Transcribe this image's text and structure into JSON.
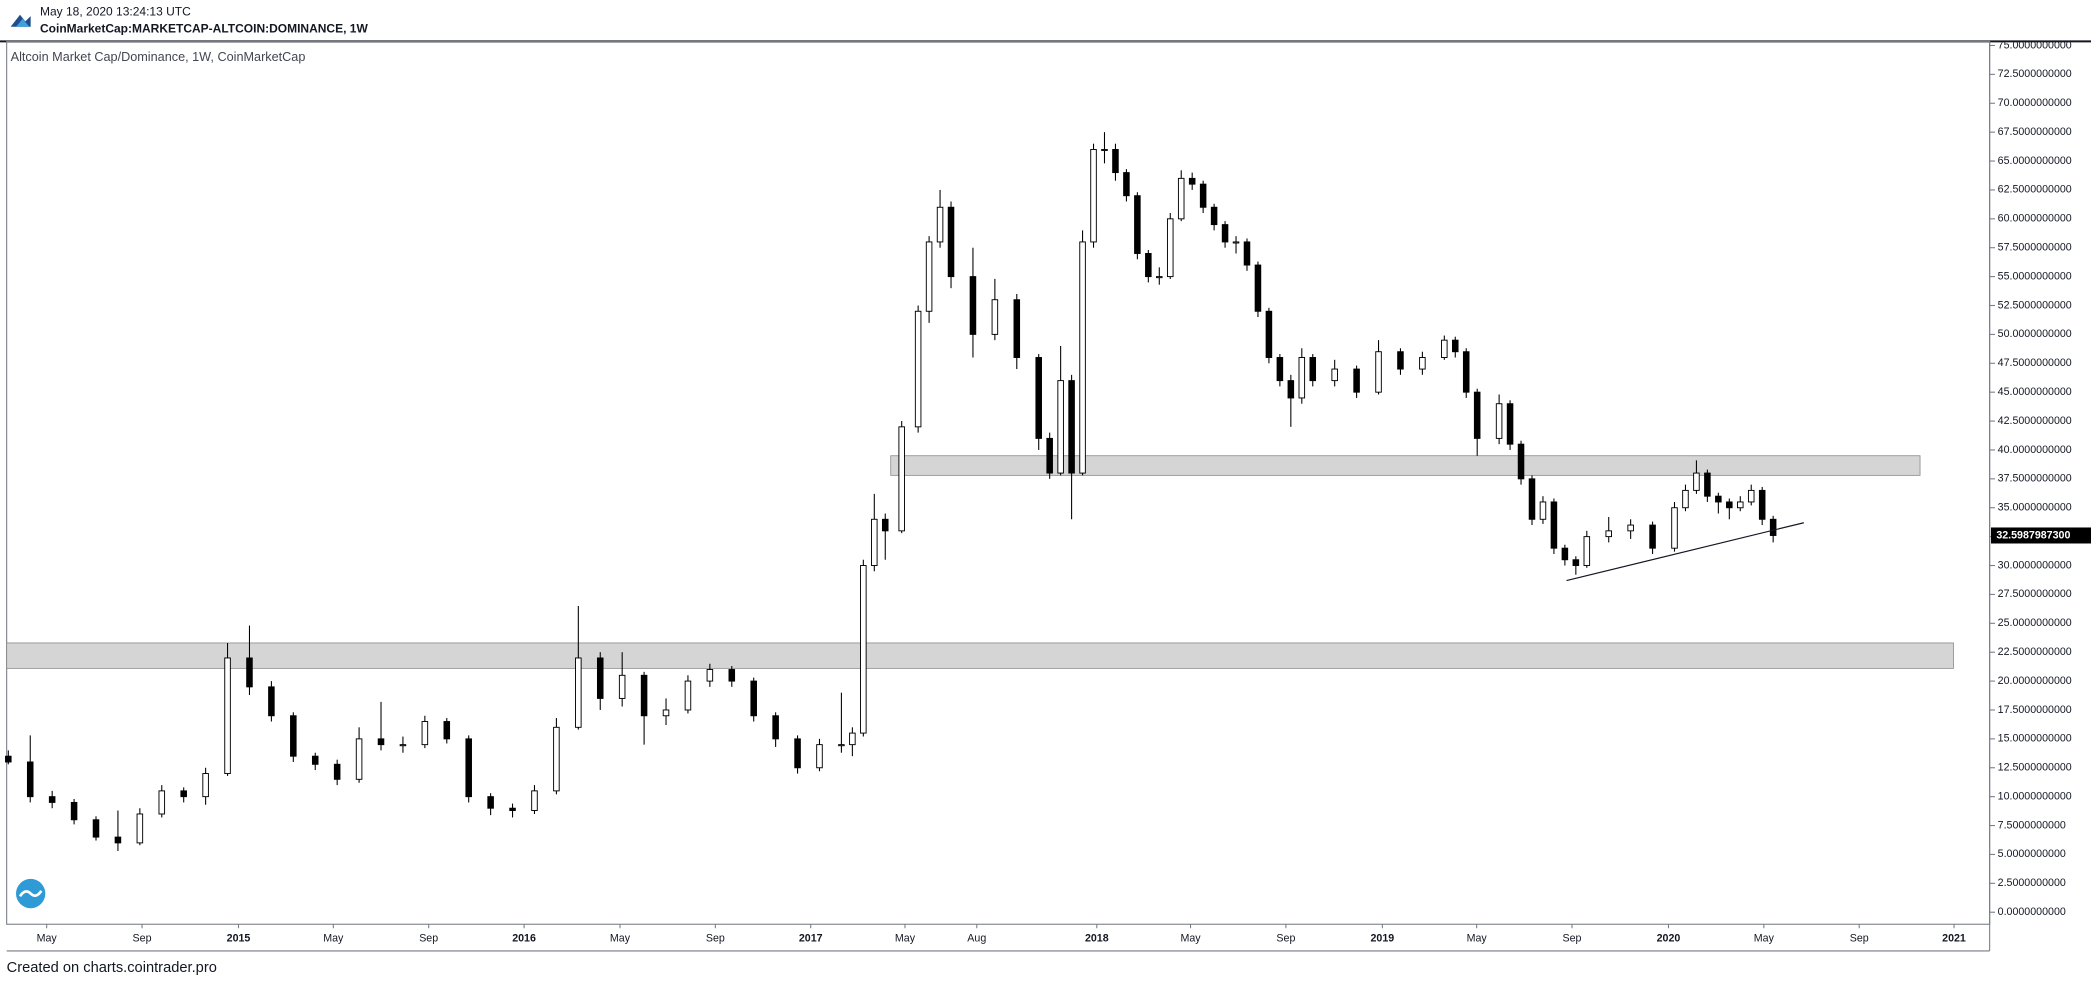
{
  "header": {
    "timestamp": "May 18, 2020 13:24:13 UTC",
    "symbol": "CoinMarketCap:MARKETCAP-ALTCOIN:DOMINANCE, 1W"
  },
  "footer": "Created on charts.cointrader.pro",
  "chart_data": {
    "type": "candlestick",
    "title": "Altcoin Market Cap/Dominance, 1W, CoinMarketCap",
    "up_color": "#ffffff",
    "down_color": "#000000",
    "wick_color": "#000000",
    "xlim": [
      -42.3,
      319.5
    ],
    "ylim": [
      -1.04,
      75.35
    ],
    "xticks": [
      {
        "value": -35,
        "label": "May"
      },
      {
        "value": -17.6,
        "label": "Sep"
      },
      {
        "value": 0,
        "label": "2015"
      },
      {
        "value": 17.3,
        "label": "May"
      },
      {
        "value": 34.7,
        "label": "Sep"
      },
      {
        "value": 52.1,
        "label": "2016"
      },
      {
        "value": 69.6,
        "label": "May"
      },
      {
        "value": 87,
        "label": "Sep"
      },
      {
        "value": 104.4,
        "label": "2017"
      },
      {
        "value": 121.6,
        "label": "May"
      },
      {
        "value": 134.7,
        "label": "Aug"
      },
      {
        "value": 156.6,
        "label": "2018"
      },
      {
        "value": 173.7,
        "label": "May"
      },
      {
        "value": 191.1,
        "label": "Sep"
      },
      {
        "value": 208.7,
        "label": "2019"
      },
      {
        "value": 225.9,
        "label": "May"
      },
      {
        "value": 243.3,
        "label": "Sep"
      },
      {
        "value": 260.9,
        "label": "2020"
      },
      {
        "value": 278.3,
        "label": "May"
      },
      {
        "value": 295.7,
        "label": "Sep"
      },
      {
        "value": 313,
        "label": "2021"
      }
    ],
    "yticks": [
      {
        "value": 0,
        "label": "0.0000000000"
      },
      {
        "value": 2.5,
        "label": "2.5000000000"
      },
      {
        "value": 5,
        "label": "5.0000000000"
      },
      {
        "value": 7.5,
        "label": "7.5000000000"
      },
      {
        "value": 10,
        "label": "10.0000000000"
      },
      {
        "value": 12.5,
        "label": "12.5000000000"
      },
      {
        "value": 15,
        "label": "15.0000000000"
      },
      {
        "value": 17.5,
        "label": "17.5000000000"
      },
      {
        "value": 20,
        "label": "20.0000000000"
      },
      {
        "value": 22.5,
        "label": "22.5000000000"
      },
      {
        "value": 25,
        "label": "25.0000000000"
      },
      {
        "value": 27.5,
        "label": "27.5000000000"
      },
      {
        "value": 30,
        "label": "30.0000000000"
      },
      {
        "value": 32.5,
        "label": "32.5000000000"
      },
      {
        "value": 35,
        "label": "35.0000000000"
      },
      {
        "value": 37.5,
        "label": "37.5000000000"
      },
      {
        "value": 40,
        "label": "40.0000000000"
      },
      {
        "value": 42.5,
        "label": "42.5000000000"
      },
      {
        "value": 45,
        "label": "45.0000000000"
      },
      {
        "value": 47.5,
        "label": "47.5000000000"
      },
      {
        "value": 50,
        "label": "50.0000000000"
      },
      {
        "value": 52.5,
        "label": "52.5000000000"
      },
      {
        "value": 55,
        "label": "55.0000000000"
      },
      {
        "value": 57.5,
        "label": "57.5000000000"
      },
      {
        "value": 60,
        "label": "60.0000000000"
      },
      {
        "value": 62.5,
        "label": "62.5000000000"
      },
      {
        "value": 65,
        "label": "65.0000000000"
      },
      {
        "value": 67.5,
        "label": "67.5000000000"
      },
      {
        "value": 70,
        "label": "70.0000000000"
      },
      {
        "value": 72.5,
        "label": "72.5000000000"
      },
      {
        "value": 75,
        "label": "75.0000000000"
      }
    ],
    "last_price": {
      "value": 32.59879873,
      "label": "32.5987987300"
    },
    "zones": [
      {
        "xlim": [
          119,
          306.8
        ],
        "ylim": [
          37.8,
          39.5
        ],
        "color": "#d3d3d3"
      },
      {
        "xlim": [
          -42.3,
          312.9
        ],
        "ylim": [
          21.1,
          23.3
        ],
        "color": "#d3d3d3"
      }
    ],
    "trendline": {
      "x": [
        242.3,
        285.6
      ],
      "y": [
        28.7,
        33.7
      ]
    },
    "candles": [
      {
        "x": -42,
        "open": 13.5,
        "high": 14,
        "low": 12.8,
        "close": 13
      },
      {
        "x": -38,
        "open": 13,
        "high": 15.3,
        "low": 9.5,
        "close": 10
      },
      {
        "x": -34,
        "open": 10,
        "high": 10.5,
        "low": 9,
        "close": 9.5
      },
      {
        "x": -30,
        "open": 9.5,
        "high": 9.8,
        "low": 7.6,
        "close": 8
      },
      {
        "x": -26,
        "open": 8,
        "high": 8.3,
        "low": 6.2,
        "close": 6.5
      },
      {
        "x": -22,
        "open": 6.5,
        "high": 8.8,
        "low": 5.3,
        "close": 6
      },
      {
        "x": -18,
        "open": 6,
        "high": 9,
        "low": 5.8,
        "close": 8.5
      },
      {
        "x": -14,
        "open": 8.5,
        "high": 11,
        "low": 8.2,
        "close": 10.5
      },
      {
        "x": -10,
        "open": 10.5,
        "high": 10.8,
        "low": 9.5,
        "close": 10
      },
      {
        "x": -6,
        "open": 10,
        "high": 12.5,
        "low": 9.3,
        "close": 12
      },
      {
        "x": -2,
        "open": 12,
        "high": 23.3,
        "low": 11.8,
        "close": 22
      },
      {
        "x": 2,
        "open": 22,
        "high": 24.8,
        "low": 18.8,
        "close": 19.5
      },
      {
        "x": 6,
        "open": 19.5,
        "high": 20,
        "low": 16.5,
        "close": 17
      },
      {
        "x": 10,
        "open": 17,
        "high": 17.3,
        "low": 13,
        "close": 13.5
      },
      {
        "x": 14,
        "open": 13.5,
        "high": 13.8,
        "low": 12.3,
        "close": 12.8
      },
      {
        "x": 18,
        "open": 12.8,
        "high": 13.2,
        "low": 11,
        "close": 11.5
      },
      {
        "x": 22,
        "open": 11.5,
        "high": 16,
        "low": 11.2,
        "close": 15
      },
      {
        "x": 26,
        "open": 15,
        "high": 18.2,
        "low": 14,
        "close": 14.5
      },
      {
        "x": 30,
        "open": 14.5,
        "high": 15.2,
        "low": 13.8,
        "close": 14.5
      },
      {
        "x": 34,
        "open": 14.5,
        "high": 17,
        "low": 14.2,
        "close": 16.5
      },
      {
        "x": 38,
        "open": 16.5,
        "high": 16.8,
        "low": 14.6,
        "close": 15
      },
      {
        "x": 42,
        "open": 15,
        "high": 15.3,
        "low": 9.5,
        "close": 10
      },
      {
        "x": 46,
        "open": 10,
        "high": 10.3,
        "low": 8.4,
        "close": 9
      },
      {
        "x": 50,
        "open": 9,
        "high": 9.4,
        "low": 8.2,
        "close": 8.8
      },
      {
        "x": 54,
        "open": 8.8,
        "high": 11,
        "low": 8.5,
        "close": 10.5
      },
      {
        "x": 58,
        "open": 10.5,
        "high": 16.8,
        "low": 10.2,
        "close": 16
      },
      {
        "x": 62,
        "open": 16,
        "high": 26.5,
        "low": 15.8,
        "close": 22
      },
      {
        "x": 66,
        "open": 22,
        "high": 22.5,
        "low": 17.5,
        "close": 18.5
      },
      {
        "x": 70,
        "open": 18.5,
        "high": 22.5,
        "low": 17.8,
        "close": 20.5
      },
      {
        "x": 74,
        "open": 20.5,
        "high": 20.8,
        "low": 14.5,
        "close": 17
      },
      {
        "x": 78,
        "open": 17,
        "high": 18.5,
        "low": 16.2,
        "close": 17.5
      },
      {
        "x": 82,
        "open": 17.5,
        "high": 20.5,
        "low": 17.2,
        "close": 20
      },
      {
        "x": 86,
        "open": 20,
        "high": 21.5,
        "low": 19.5,
        "close": 21
      },
      {
        "x": 90,
        "open": 21,
        "high": 21.3,
        "low": 19.5,
        "close": 20
      },
      {
        "x": 94,
        "open": 20,
        "high": 20.3,
        "low": 16.5,
        "close": 17
      },
      {
        "x": 98,
        "open": 17,
        "high": 17.3,
        "low": 14.3,
        "close": 15
      },
      {
        "x": 102,
        "open": 15,
        "high": 15.3,
        "low": 12,
        "close": 12.5
      },
      {
        "x": 106,
        "open": 12.5,
        "high": 15,
        "low": 12.2,
        "close": 14.5
      },
      {
        "x": 110,
        "open": 14.5,
        "high": 19,
        "low": 13.8,
        "close": 14.5
      },
      {
        "x": 112,
        "open": 14.5,
        "high": 16,
        "low": 13.5,
        "close": 15.5
      },
      {
        "x": 114,
        "open": 15.5,
        "high": 30.5,
        "low": 15.2,
        "close": 30
      },
      {
        "x": 116,
        "open": 30,
        "high": 36.2,
        "low": 29.5,
        "close": 34
      },
      {
        "x": 118,
        "open": 34,
        "high": 34.5,
        "low": 30.5,
        "close": 33
      },
      {
        "x": 121,
        "open": 33,
        "high": 42.5,
        "low": 32.8,
        "close": 42
      },
      {
        "x": 124,
        "open": 42,
        "high": 52.5,
        "low": 41.5,
        "close": 52
      },
      {
        "x": 126,
        "open": 52,
        "high": 58.5,
        "low": 51,
        "close": 58
      },
      {
        "x": 128,
        "open": 58,
        "high": 62.5,
        "low": 57.5,
        "close": 61
      },
      {
        "x": 130,
        "open": 61,
        "high": 61.5,
        "low": 54,
        "close": 55
      },
      {
        "x": 134,
        "open": 55,
        "high": 57.5,
        "low": 48,
        "close": 50
      },
      {
        "x": 138,
        "open": 50,
        "high": 54.8,
        "low": 49.5,
        "close": 53
      },
      {
        "x": 142,
        "open": 53,
        "high": 53.5,
        "low": 47,
        "close": 48
      },
      {
        "x": 146,
        "open": 48,
        "high": 48.3,
        "low": 40,
        "close": 41
      },
      {
        "x": 148,
        "open": 41,
        "high": 41.5,
        "low": 37.5,
        "close": 38
      },
      {
        "x": 150,
        "open": 38,
        "high": 49,
        "low": 37.8,
        "close": 46
      },
      {
        "x": 152,
        "open": 46,
        "high": 46.5,
        "low": 34,
        "close": 38
      },
      {
        "x": 154,
        "open": 38,
        "high": 59,
        "low": 37.8,
        "close": 58
      },
      {
        "x": 156,
        "open": 58,
        "high": 66.5,
        "low": 57.5,
        "close": 66
      },
      {
        "x": 158,
        "open": 66,
        "high": 67.5,
        "low": 64.8,
        "close": 66
      },
      {
        "x": 160,
        "open": 66,
        "high": 66.5,
        "low": 63.3,
        "close": 64
      },
      {
        "x": 162,
        "open": 64,
        "high": 64.3,
        "low": 61.5,
        "close": 62
      },
      {
        "x": 164,
        "open": 62,
        "high": 62.3,
        "low": 56.5,
        "close": 57
      },
      {
        "x": 166,
        "open": 57,
        "high": 57.3,
        "low": 54.5,
        "close": 55
      },
      {
        "x": 168,
        "open": 55,
        "high": 55.8,
        "low": 54.3,
        "close": 55
      },
      {
        "x": 170,
        "open": 55,
        "high": 60.5,
        "low": 54.8,
        "close": 60
      },
      {
        "x": 172,
        "open": 60,
        "high": 64.2,
        "low": 59.8,
        "close": 63.5
      },
      {
        "x": 174,
        "open": 63.5,
        "high": 64,
        "low": 62.5,
        "close": 63
      },
      {
        "x": 176,
        "open": 63,
        "high": 63.3,
        "low": 60.5,
        "close": 61
      },
      {
        "x": 178,
        "open": 61,
        "high": 61.3,
        "low": 59,
        "close": 59.5
      },
      {
        "x": 180,
        "open": 59.5,
        "high": 59.8,
        "low": 57.5,
        "close": 58
      },
      {
        "x": 182,
        "open": 58,
        "high": 58.5,
        "low": 57,
        "close": 58
      },
      {
        "x": 184,
        "open": 58,
        "high": 58.3,
        "low": 55.5,
        "close": 56
      },
      {
        "x": 186,
        "open": 56,
        "high": 56.3,
        "low": 51.5,
        "close": 52
      },
      {
        "x": 188,
        "open": 52,
        "high": 52.3,
        "low": 47.5,
        "close": 48
      },
      {
        "x": 190,
        "open": 48,
        "high": 48.3,
        "low": 45.5,
        "close": 46
      },
      {
        "x": 192,
        "open": 46,
        "high": 46.5,
        "low": 42,
        "close": 44.5
      },
      {
        "x": 194,
        "open": 44.5,
        "high": 48.8,
        "low": 44,
        "close": 48
      },
      {
        "x": 196,
        "open": 48,
        "high": 48.3,
        "low": 45.5,
        "close": 46
      },
      {
        "x": 200,
        "open": 46,
        "high": 47.8,
        "low": 45.5,
        "close": 47
      },
      {
        "x": 204,
        "open": 47,
        "high": 47.3,
        "low": 44.5,
        "close": 45
      },
      {
        "x": 208,
        "open": 45,
        "high": 49.5,
        "low": 44.8,
        "close": 48.5
      },
      {
        "x": 212,
        "open": 48.5,
        "high": 48.8,
        "low": 46.5,
        "close": 47
      },
      {
        "x": 216,
        "open": 47,
        "high": 48.5,
        "low": 46.5,
        "close": 48
      },
      {
        "x": 220,
        "open": 48,
        "high": 49.9,
        "low": 47.8,
        "close": 49.5
      },
      {
        "x": 222,
        "open": 49.5,
        "high": 49.8,
        "low": 48,
        "close": 48.5
      },
      {
        "x": 224,
        "open": 48.5,
        "high": 48.8,
        "low": 44.5,
        "close": 45
      },
      {
        "x": 226,
        "open": 45,
        "high": 45.3,
        "low": 39.5,
        "close": 41
      },
      {
        "x": 230,
        "open": 41,
        "high": 44.8,
        "low": 40.5,
        "close": 44
      },
      {
        "x": 232,
        "open": 44,
        "high": 44.3,
        "low": 40,
        "close": 40.5
      },
      {
        "x": 234,
        "open": 40.5,
        "high": 40.8,
        "low": 37,
        "close": 37.5
      },
      {
        "x": 236,
        "open": 37.5,
        "high": 37.8,
        "low": 33.5,
        "close": 34
      },
      {
        "x": 238,
        "open": 34,
        "high": 36,
        "low": 33.6,
        "close": 35.5
      },
      {
        "x": 240,
        "open": 35.5,
        "high": 35.8,
        "low": 31,
        "close": 31.5
      },
      {
        "x": 242,
        "open": 31.5,
        "high": 31.8,
        "low": 30,
        "close": 30.5
      },
      {
        "x": 244,
        "open": 30.5,
        "high": 30.8,
        "low": 29.2,
        "close": 30
      },
      {
        "x": 246,
        "open": 30,
        "high": 33,
        "low": 29.8,
        "close": 32.5
      },
      {
        "x": 250,
        "open": 32.5,
        "high": 34.2,
        "low": 32,
        "close": 33
      },
      {
        "x": 254,
        "open": 33,
        "high": 34,
        "low": 32.3,
        "close": 33.5
      },
      {
        "x": 258,
        "open": 33.5,
        "high": 33.8,
        "low": 31,
        "close": 31.5
      },
      {
        "x": 262,
        "open": 31.5,
        "high": 35.5,
        "low": 31.2,
        "close": 35
      },
      {
        "x": 264,
        "open": 35,
        "high": 37,
        "low": 34.7,
        "close": 36.5
      },
      {
        "x": 266,
        "open": 36.5,
        "high": 39.1,
        "low": 36.2,
        "close": 38
      },
      {
        "x": 268,
        "open": 38,
        "high": 38.3,
        "low": 35.5,
        "close": 36
      },
      {
        "x": 270,
        "open": 36,
        "high": 36.3,
        "low": 34.5,
        "close": 35.5
      },
      {
        "x": 272,
        "open": 35.5,
        "high": 35.8,
        "low": 34,
        "close": 35
      },
      {
        "x": 274,
        "open": 35,
        "high": 36,
        "low": 34.7,
        "close": 35.5
      },
      {
        "x": 276,
        "open": 35.5,
        "high": 37,
        "low": 35.2,
        "close": 36.5
      },
      {
        "x": 278,
        "open": 36.5,
        "high": 36.8,
        "low": 33.5,
        "close": 34
      },
      {
        "x": 280,
        "open": 34,
        "high": 34.3,
        "low": 32,
        "close": 32.59879873
      }
    ]
  }
}
